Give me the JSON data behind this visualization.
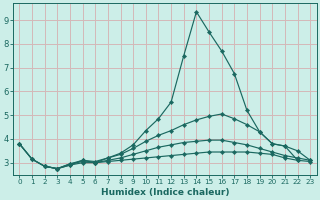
{
  "xlabel": "Humidex (Indice chaleur)",
  "xlim": [
    -0.5,
    23.5
  ],
  "ylim": [
    2.5,
    9.7
  ],
  "xticks": [
    0,
    1,
    2,
    3,
    4,
    5,
    6,
    7,
    8,
    9,
    10,
    11,
    12,
    13,
    14,
    15,
    16,
    17,
    18,
    19,
    20,
    21,
    22,
    23
  ],
  "yticks": [
    3,
    4,
    5,
    6,
    7,
    8,
    9
  ],
  "background_color": "#cceee8",
  "grid_color": "#d4b8b8",
  "line_color": "#1a6860",
  "lines": [
    {
      "x": [
        0,
        1,
        2,
        3,
        4,
        5,
        6,
        7,
        8,
        9,
        10,
        11,
        12,
        13,
        14,
        15,
        16,
        17,
        18,
        19,
        20,
        21,
        22
      ],
      "y": [
        3.8,
        3.15,
        2.85,
        2.75,
        2.9,
        3.1,
        3.0,
        3.2,
        3.4,
        3.75,
        4.35,
        4.85,
        5.55,
        7.5,
        9.35,
        8.5,
        7.7,
        6.75,
        5.2,
        4.3,
        3.8,
        3.7,
        3.1
      ]
    },
    {
      "x": [
        0,
        1,
        2,
        3,
        4,
        5,
        6,
        7,
        8,
        9,
        10,
        11,
        12,
        13,
        14,
        15,
        16,
        17,
        18,
        19,
        20,
        21,
        22,
        23
      ],
      "y": [
        3.8,
        3.15,
        2.85,
        2.75,
        2.95,
        3.1,
        3.05,
        3.2,
        3.35,
        3.6,
        3.9,
        4.15,
        4.35,
        4.6,
        4.8,
        4.95,
        5.05,
        4.85,
        4.6,
        4.3,
        3.8,
        3.7,
        3.5,
        3.1
      ]
    },
    {
      "x": [
        0,
        1,
        2,
        3,
        4,
        5,
        6,
        7,
        8,
        9,
        10,
        11,
        12,
        13,
        14,
        15,
        16,
        17,
        18,
        19,
        20,
        21,
        22,
        23
      ],
      "y": [
        3.8,
        3.15,
        2.85,
        2.75,
        2.95,
        3.05,
        3.0,
        3.1,
        3.2,
        3.35,
        3.5,
        3.65,
        3.75,
        3.85,
        3.9,
        3.95,
        3.95,
        3.85,
        3.75,
        3.6,
        3.45,
        3.3,
        3.2,
        3.1
      ]
    },
    {
      "x": [
        2,
        3,
        4,
        5,
        6,
        7,
        8,
        9,
        10,
        11,
        12,
        13,
        14,
        15,
        16,
        17,
        18,
        19,
        20,
        21,
        22,
        23
      ],
      "y": [
        2.85,
        2.75,
        2.9,
        3.0,
        3.0,
        3.05,
        3.1,
        3.15,
        3.2,
        3.25,
        3.3,
        3.35,
        3.4,
        3.45,
        3.45,
        3.45,
        3.45,
        3.4,
        3.35,
        3.2,
        3.1,
        3.05
      ]
    }
  ]
}
